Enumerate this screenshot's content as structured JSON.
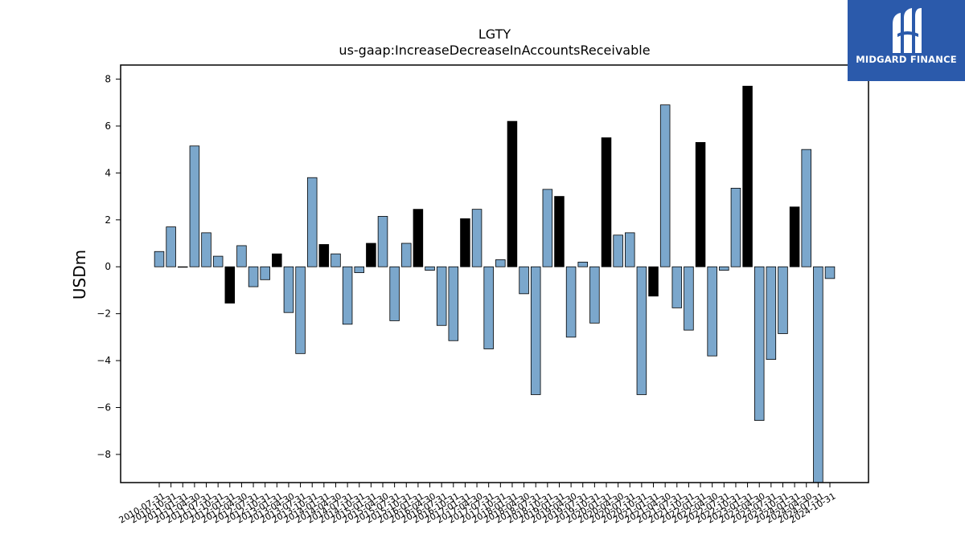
{
  "chart_data": {
    "type": "bar",
    "title": "LGTY",
    "subtitle": "us-gaap:IncreaseDecreaseInAccountsReceivable",
    "xlabel": "",
    "ylabel": "USDm",
    "ylim": [
      -9.2,
      8.6
    ],
    "yticks": [
      -8,
      -6,
      -4,
      -2,
      0,
      2,
      4,
      6,
      8
    ],
    "colors": {
      "quarterly": "#7ba7cc",
      "annual": "#000000",
      "edge": "#000000"
    },
    "categories": [
      "2010-07-31",
      "2010-10-31",
      "2011-01-31",
      "2011-04-30",
      "2011-07-31",
      "2011-10-31",
      "2012-01-31",
      "2012-04-30",
      "2012-07-31",
      "2012-10-31",
      "2013-01-31",
      "2013-04-30",
      "2013-07-31",
      "2013-10-31",
      "2014-01-31",
      "2014-04-30",
      "2014-07-31",
      "2014-10-31",
      "2015-01-31",
      "2015-04-30",
      "2015-07-31",
      "2015-10-31",
      "2016-01-31",
      "2016-04-30",
      "2016-07-31",
      "2016-10-31",
      "2017-01-31",
      "2017-04-30",
      "2017-07-31",
      "2017-10-31",
      "2018-01-31",
      "2018-04-30",
      "2018-07-31",
      "2018-10-31",
      "2019-01-31",
      "2019-04-30",
      "2019-07-31",
      "2019-10-31",
      "2020-01-31",
      "2020-04-30",
      "2020-07-31",
      "2020-10-31",
      "2021-01-31",
      "2021-04-30",
      "2021-07-31",
      "2021-10-31",
      "2022-01-31",
      "2022-04-30",
      "2022-07-31",
      "2022-10-31",
      "2023-01-31",
      "2023-04-30",
      "2023-07-31",
      "2023-10-31",
      "2024-01-31",
      "2024-04-30",
      "2024-07-31",
      "2024-10-31"
    ],
    "values": [
      0.65,
      1.7,
      0.0,
      5.15,
      1.45,
      0.45,
      -1.55,
      0.9,
      -0.85,
      -0.55,
      0.55,
      -1.95,
      -3.7,
      3.8,
      0.95,
      0.55,
      -2.45,
      -0.25,
      1.0,
      2.15,
      -2.3,
      1.0,
      2.45,
      -0.15,
      -2.5,
      -3.15,
      2.05,
      2.45,
      -3.5,
      0.3,
      6.2,
      -1.15,
      -5.45,
      3.3,
      3.0,
      -3.0,
      0.2,
      -2.4,
      5.5,
      1.35,
      1.45,
      -5.45,
      -1.25,
      6.9,
      -1.75,
      -2.7,
      5.3,
      -3.8,
      -0.15,
      3.35,
      7.7,
      -6.55,
      -3.95,
      -2.85,
      2.55,
      5.0,
      -9.2,
      -0.5
    ],
    "annual": [
      false,
      false,
      false,
      false,
      false,
      false,
      true,
      false,
      false,
      false,
      true,
      false,
      false,
      false,
      true,
      false,
      false,
      false,
      true,
      false,
      false,
      false,
      true,
      false,
      false,
      false,
      true,
      false,
      false,
      false,
      true,
      false,
      false,
      false,
      true,
      false,
      false,
      false,
      true,
      false,
      false,
      false,
      true,
      false,
      false,
      false,
      true,
      false,
      false,
      false,
      true,
      false,
      false,
      false,
      true,
      false,
      false,
      false
    ]
  },
  "logo": {
    "text": "MIDGARD FINANCE"
  }
}
